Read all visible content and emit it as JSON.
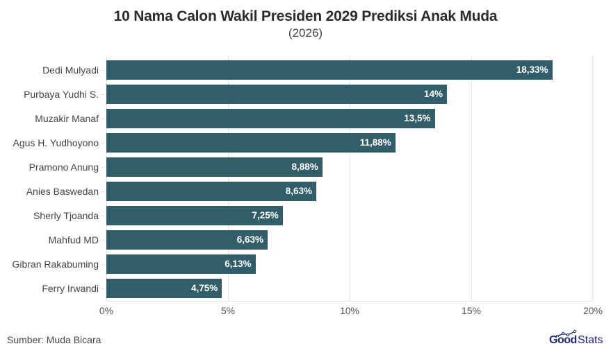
{
  "header": {
    "title": "10 Nama Calon Wakil Presiden 2029 Prediksi Anak Muda",
    "subtitle": "(2026)"
  },
  "footer": {
    "source": "Sumber: Muda Bicara",
    "logo_bold": "Good",
    "logo_light": "Stats"
  },
  "colors": {
    "bar": "#325e69",
    "grid": "#e6e6e6",
    "logo": "#1c2a7a"
  },
  "axis": {
    "ticks": [
      "0%",
      "5%",
      "10%",
      "15%",
      "20%"
    ]
  },
  "rows": [
    {
      "label": "Dedi Mulyadi",
      "value": 18.33,
      "value_label": "18,33%"
    },
    {
      "label": "Purbaya Yudhi S.",
      "value": 14,
      "value_label": "14%"
    },
    {
      "label": "Muzakir Manaf",
      "value": 13.5,
      "value_label": "13,5%"
    },
    {
      "label": "Agus H. Yudhoyono",
      "value": 11.88,
      "value_label": "11,88%"
    },
    {
      "label": "Pramono Anung",
      "value": 8.88,
      "value_label": "8,88%"
    },
    {
      "label": "Anies Baswedan",
      "value": 8.63,
      "value_label": "8,63%"
    },
    {
      "label": "Sherly Tjoanda",
      "value": 7.25,
      "value_label": "7,25%"
    },
    {
      "label": "Mahfud MD",
      "value": 6.63,
      "value_label": "6,63%"
    },
    {
      "label": "Gibran Rakabuming",
      "value": 6.13,
      "value_label": "6,13%"
    },
    {
      "label": "Ferry Irwandi",
      "value": 4.75,
      "value_label": "4,75%"
    }
  ],
  "chart_data": {
    "type": "bar",
    "orientation": "horizontal",
    "title": "10 Nama Calon Wakil Presiden 2029 Prediksi Anak Muda",
    "subtitle": "(2026)",
    "categories": [
      "Dedi Mulyadi",
      "Purbaya Yudhi S.",
      "Muzakir Manaf",
      "Agus H. Yudhoyono",
      "Pramono Anung",
      "Anies Baswedan",
      "Sherly Tjoanda",
      "Mahfud MD",
      "Gibran Rakabuming",
      "Ferry Irwandi"
    ],
    "values": [
      18.33,
      14,
      13.5,
      11.88,
      8.88,
      8.63,
      7.25,
      6.63,
      6.13,
      4.75
    ],
    "data_labels": [
      "18,33%",
      "14%",
      "13,5%",
      "11,88%",
      "8,88%",
      "8,63%",
      "7,25%",
      "6,63%",
      "6,13%",
      "4,75%"
    ],
    "xlabel": "",
    "ylabel": "",
    "xlim": [
      0,
      20
    ],
    "xticks": [
      "0%",
      "5%",
      "10%",
      "15%",
      "20%"
    ],
    "grid": true,
    "legend": null,
    "source": "Sumber: Muda Bicara"
  }
}
